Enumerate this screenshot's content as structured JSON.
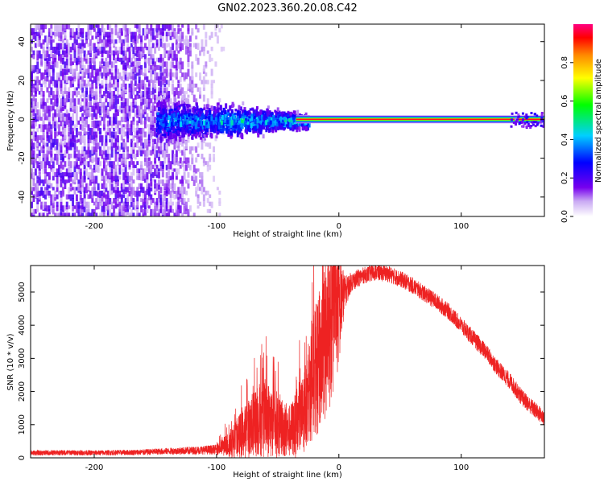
{
  "title": "GN02.2023.360.20.08.C42",
  "colors": {
    "snr_line": "#ee2222",
    "frame": "#000000",
    "background": "#ffffff"
  },
  "chart_data": [
    {
      "type": "heatmap",
      "xlabel": "Height of straight line (km)",
      "ylabel": "Frequency (Hz)",
      "xlim": [
        -252,
        168
      ],
      "ylim": [
        -50,
        49
      ],
      "x_ticks": [
        -200,
        -100,
        0,
        100
      ],
      "y_ticks": [
        -40,
        -20,
        0,
        20,
        40
      ],
      "colorbar": {
        "label": "Normalized spectral amplitude",
        "range": [
          0,
          1
        ],
        "ticks": [
          0.0,
          0.2,
          0.4,
          0.6,
          0.8
        ],
        "colormap": [
          "#ffffff",
          "#7700ee",
          "#0000ff",
          "#00cfff",
          "#00ff00",
          "#ffff00",
          "#ff8800",
          "#ff0000",
          "#ff0080"
        ]
      },
      "features": [
        {
          "region": "noise",
          "x_range": [
            -252,
            -105
          ],
          "y_range": [
            -50,
            49
          ],
          "amplitude": 0.05
        },
        {
          "region": "meteor_head",
          "x_range": [
            -150,
            -25
          ],
          "y_range": [
            -8,
            8
          ],
          "amplitude": 0.25
        },
        {
          "region": "carrier_line",
          "x_range": [
            -35,
            168
          ],
          "y_center": 0,
          "amplitude": 0.85
        }
      ]
    },
    {
      "type": "line",
      "xlabel": "Height of straight line (km)",
      "ylabel": "SNR (10 * v/v)",
      "xlim": [
        -252,
        168
      ],
      "ylim": [
        0,
        5800
      ],
      "x_ticks": [
        -200,
        -100,
        0,
        100
      ],
      "y_ticks": [
        0,
        1000,
        2000,
        3000,
        4000,
        5000
      ],
      "series": [
        {
          "x": [
            -252,
            -240,
            -220,
            -200,
            -180,
            -160,
            -140,
            -120,
            -100,
            -90,
            -80,
            -70,
            -60,
            -50,
            -40,
            -30,
            -25,
            -20,
            -15,
            -10,
            -5,
            0,
            5,
            10,
            20,
            30,
            40,
            50,
            60,
            70,
            80,
            90,
            100,
            110,
            120,
            130,
            140,
            150,
            160,
            168
          ],
          "y": [
            150,
            150,
            160,
            150,
            160,
            170,
            200,
            220,
            250,
            400,
            700,
            1000,
            1200,
            1000,
            800,
            1200,
            2000,
            2500,
            3000,
            3600,
            4000,
            4500,
            5000,
            5300,
            5500,
            5600,
            5550,
            5400,
            5200,
            4950,
            4700,
            4400,
            4000,
            3600,
            3200,
            2700,
            2300,
            1800,
            1450,
            1200
          ],
          "spread": [
            80,
            80,
            80,
            80,
            80,
            90,
            100,
            120,
            150,
            400,
            700,
            1000,
            1200,
            1000,
            800,
            1200,
            1500,
            2000,
            2200,
            2500,
            2200,
            1800,
            500,
            300,
            250,
            250,
            250,
            250,
            250,
            250,
            250,
            250,
            250,
            250,
            250,
            250,
            250,
            250,
            250,
            250
          ]
        }
      ]
    }
  ]
}
